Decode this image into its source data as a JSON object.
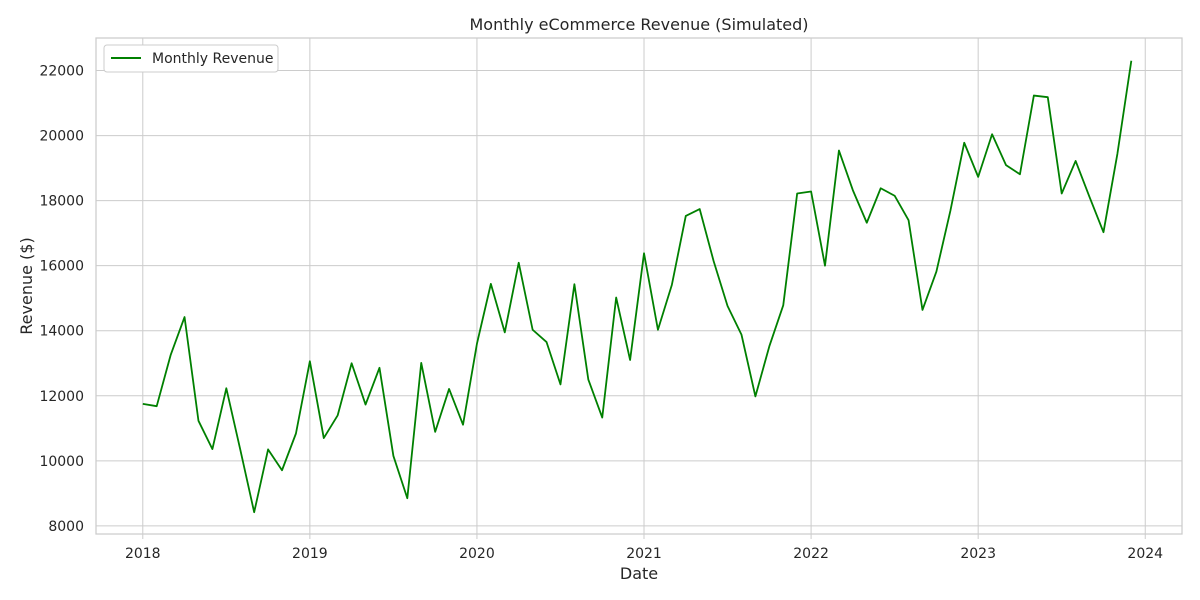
{
  "chart_data": {
    "type": "line",
    "title": "Monthly eCommerce Revenue (Simulated)",
    "xlabel": "Date",
    "ylabel": "Revenue ($)",
    "grid": true,
    "legend_position": "top-left",
    "xlim": [
      2017.72,
      2024.22
    ],
    "ylim": [
      7750,
      23000
    ],
    "x_ticks": [
      2018,
      2019,
      2020,
      2021,
      2022,
      2023,
      2024
    ],
    "x_tick_labels": [
      "2018",
      "2019",
      "2020",
      "2021",
      "2022",
      "2023",
      "2024"
    ],
    "y_ticks": [
      8000,
      10000,
      12000,
      14000,
      16000,
      18000,
      20000,
      22000
    ],
    "y_tick_labels": [
      "8000",
      "10000",
      "12000",
      "14000",
      "16000",
      "18000",
      "20000",
      "22000"
    ],
    "series": [
      {
        "name": "Monthly Revenue",
        "color": "#008000",
        "start_year": 2018,
        "start_month": 1,
        "values": [
          11750,
          11680,
          13250,
          14420,
          11230,
          10360,
          12230,
          10350,
          8420,
          10350,
          9710,
          10840,
          13060,
          10700,
          11400,
          13000,
          11730,
          12860,
          10150,
          8850,
          13010,
          10890,
          12210,
          11110,
          13600,
          15440,
          13950,
          16090,
          14030,
          13650,
          12350,
          15430,
          12500,
          11330,
          15020,
          13100,
          16380,
          14030,
          15410,
          17530,
          17740,
          16140,
          14760,
          13880,
          11980,
          13520,
          14780,
          18220,
          18280,
          16000,
          19540,
          18320,
          17320,
          18380,
          18150,
          17400,
          14640,
          15820,
          17680,
          19780,
          18730,
          20040,
          19090,
          18810,
          21230,
          21180,
          18220,
          19220,
          18110,
          17030,
          19440,
          22300
        ]
      }
    ]
  }
}
